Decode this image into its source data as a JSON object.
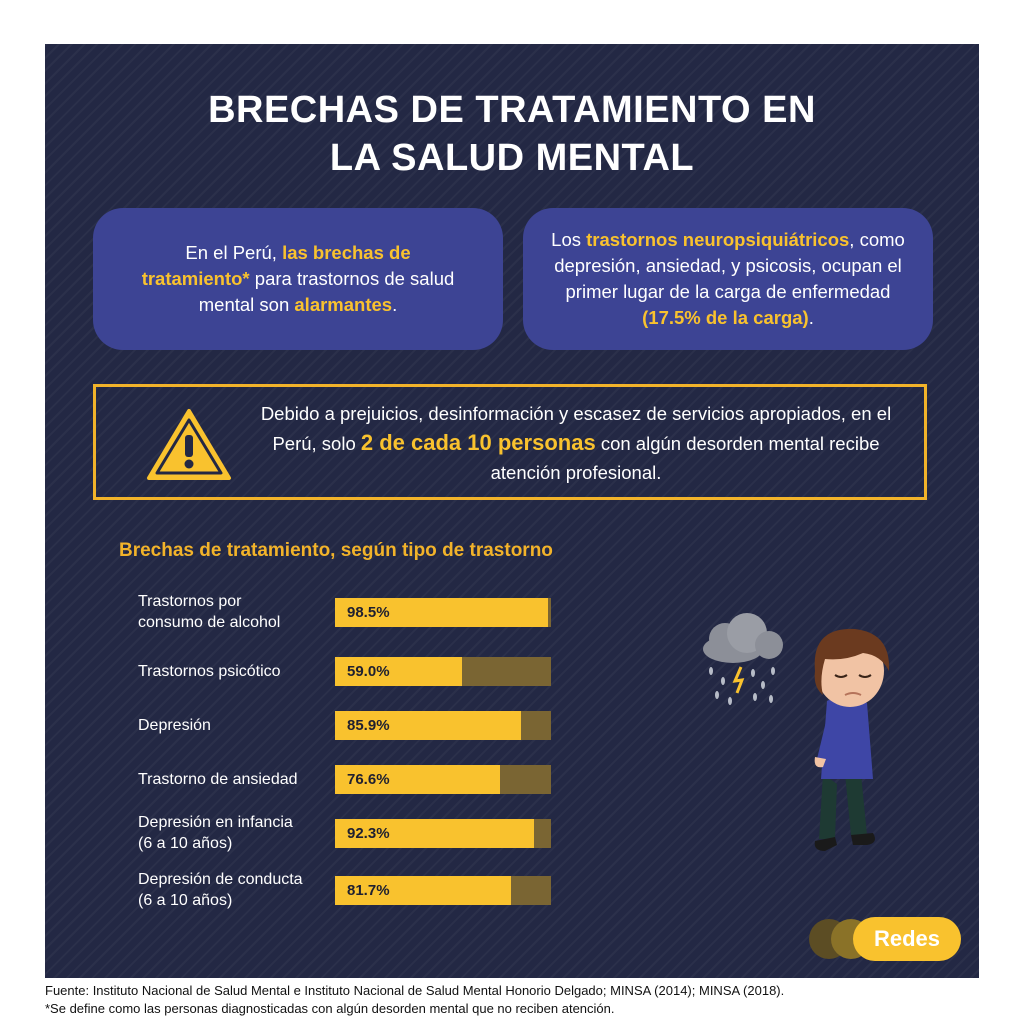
{
  "title": {
    "line1": "BRECHAS DE TRATAMIENTO EN",
    "line2": "LA SALUD MENTAL"
  },
  "bubble_left": {
    "t1": "En el Perú, ",
    "h1": "las brechas de tratamiento*",
    "t2": " para trastornos de salud mental son ",
    "h2": "alarmantes",
    "t3": "."
  },
  "bubble_right": {
    "t1": "Los ",
    "h1": "trastornos neuropsiquiátricos",
    "t2": ", como depresión, ansiedad, y psicosis, ocupan el primer lugar de la carga de enfermedad ",
    "h2": "(17.5% de la carga)",
    "t3": "."
  },
  "warning": {
    "icon": "warning-triangle-icon",
    "t1": "Debido a prejuicios, desinformación y escasez de servicios apropiados, en el Perú, solo ",
    "h1": "2 de cada 10 personas",
    "t2": " con algún desorden mental recibe atención profesional."
  },
  "chart_title": "Brechas de tratamiento, según tipo de trastorno",
  "chart_data": {
    "type": "bar",
    "orientation": "horizontal",
    "categories": [
      [
        "Trastornos por",
        "consumo de alcohol"
      ],
      [
        "Trastornos psicótico"
      ],
      [
        "Depresión"
      ],
      [
        "Trastorno de ansiedad"
      ],
      [
        "Depresión en infancia",
        "(6 a 10 años)"
      ],
      [
        "Depresión de conducta",
        "(6 a 10 años)"
      ]
    ],
    "values": [
      98.5,
      59.0,
      85.9,
      76.6,
      92.3,
      81.7
    ],
    "labels": [
      "98.5%",
      "59.0%",
      "85.9%",
      "76.6%",
      "92.3%",
      "81.7%"
    ],
    "xlim": [
      0,
      100
    ],
    "colors": {
      "fill": "#f9c22e",
      "track": "#7a6533"
    }
  },
  "illustration": {
    "icon": "sad-person-rain-cloud-icon"
  },
  "logo": {
    "text": "Redes"
  },
  "footer": {
    "source": "Fuente: Instituto Nacional de Salud Mental e Instituto Nacional de Salud Mental Honorio Delgado; MINSA (2014); MINSA (2018).",
    "note": "*Se define como las personas diagnosticadas con algún desorden mental que no reciben atención."
  },
  "colors": {
    "background": "#232844",
    "bubble": "#3d4494",
    "accent": "#f9c22e"
  }
}
